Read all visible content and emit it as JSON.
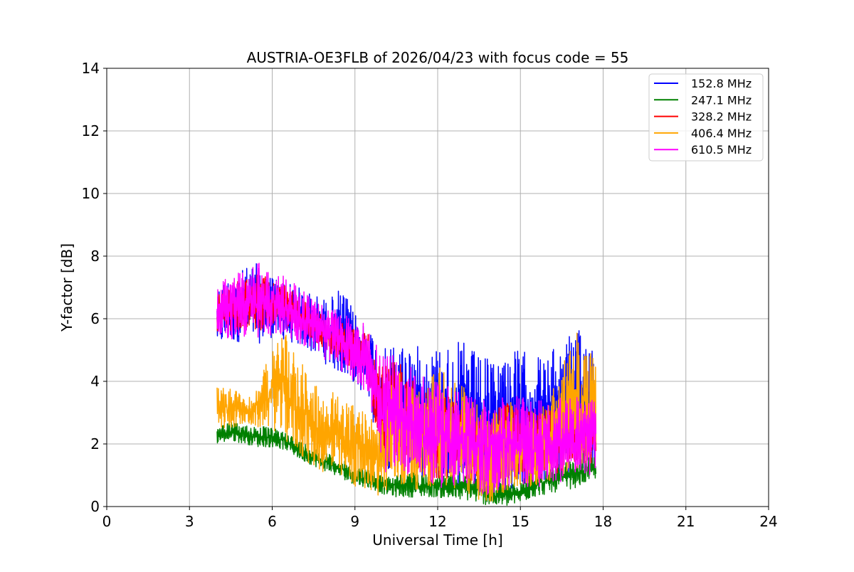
{
  "chart_data": {
    "type": "line",
    "title": "AUSTRIA-OE3FLB of 2026/04/23 with focus code = 55",
    "xlabel": "Universal Time [h]",
    "ylabel": "Y-factor [dB]",
    "xlim": [
      0,
      24
    ],
    "ylim": [
      0,
      14
    ],
    "xticks": [
      0,
      3,
      6,
      9,
      12,
      15,
      18,
      21,
      24
    ],
    "yticks": [
      0,
      2,
      4,
      6,
      8,
      10,
      12,
      14
    ],
    "grid": true,
    "legend_position": "top-right",
    "x": [
      4,
      4.5,
      5,
      5.5,
      6,
      6.5,
      7,
      7.5,
      8,
      8.5,
      9,
      9.5,
      10,
      10.5,
      11,
      11.5,
      12,
      12.5,
      13,
      13.5,
      14,
      14.5,
      15,
      15.5,
      16,
      16.5,
      17,
      17.5,
      17.75
    ],
    "series": [
      {
        "name": "152.8 MHz",
        "color": "#0000ff",
        "low": [
          5.1,
          5.2,
          5.3,
          5.2,
          5.4,
          5.3,
          5.1,
          4.9,
          4.5,
          4.2,
          3.9,
          3.4,
          1.2,
          1.2,
          1.0,
          0.9,
          0.8,
          0.7,
          0.6,
          0.5,
          0.4,
          0.5,
          0.6,
          0.7,
          0.8,
          0.9,
          1.0,
          1.0,
          1.2
        ],
        "high": [
          7.0,
          7.4,
          7.6,
          7.8,
          7.4,
          7.2,
          7.0,
          6.8,
          6.6,
          7.0,
          6.2,
          5.8,
          5.0,
          5.3,
          5.3,
          5.0,
          5.2,
          5.2,
          5.3,
          4.8,
          4.7,
          5.1,
          5.0,
          4.9,
          4.8,
          5.4,
          5.6,
          5.7,
          5.0
        ]
      },
      {
        "name": "247.1 MHz",
        "color": "#008000",
        "low": [
          2.0,
          2.1,
          2.0,
          1.9,
          1.9,
          1.8,
          1.5,
          1.3,
          1.1,
          0.9,
          0.7,
          0.6,
          0.4,
          0.3,
          0.3,
          0.3,
          0.3,
          0.2,
          0.2,
          0.1,
          0.0,
          0.0,
          0.1,
          0.3,
          0.4,
          0.5,
          0.6,
          0.8,
          0.9
        ],
        "high": [
          2.6,
          2.7,
          2.6,
          2.6,
          2.5,
          2.4,
          2.1,
          1.9,
          1.7,
          1.5,
          1.3,
          1.2,
          1.0,
          1.0,
          1.1,
          1.1,
          1.0,
          1.0,
          1.1,
          1.0,
          0.8,
          0.7,
          0.8,
          1.2,
          1.2,
          1.4,
          1.5,
          1.6,
          1.6
        ]
      },
      {
        "name": "328.2 MHz",
        "color": "#ff0000",
        "low": [
          5.5,
          5.6,
          5.7,
          5.6,
          5.8,
          5.7,
          5.5,
          5.3,
          4.9,
          4.6,
          4.3,
          3.8,
          1.3,
          1.5,
          1.3,
          1.1,
          0.9,
          0.9,
          0.8,
          0.7,
          0.6,
          0.8,
          0.9,
          0.9,
          1.0,
          1.1,
          1.3,
          1.3,
          1.5
        ],
        "high": [
          6.7,
          7.2,
          7.3,
          7.5,
          7.2,
          7.1,
          6.7,
          6.3,
          6.1,
          5.9,
          5.7,
          5.5,
          4.5,
          4.7,
          4.2,
          3.9,
          3.7,
          3.5,
          3.3,
          3.1,
          3.1,
          3.3,
          3.2,
          3.1,
          3.2,
          3.3,
          3.2,
          3.1,
          3.1
        ]
      },
      {
        "name": "406.4 MHz",
        "color": "#ffa500",
        "low": [
          2.4,
          2.5,
          2.6,
          2.5,
          2.5,
          2.0,
          1.6,
          1.2,
          1.0,
          0.8,
          0.6,
          0.5,
          0.3,
          0.5,
          0.5,
          0.6,
          0.6,
          0.5,
          0.4,
          0.2,
          0.1,
          0.3,
          0.5,
          0.6,
          0.8,
          1.0,
          1.2,
          1.4,
          1.5
        ],
        "high": [
          3.8,
          3.9,
          3.5,
          3.8,
          5.2,
          5.6,
          4.8,
          4.0,
          3.8,
          3.5,
          3.2,
          3.0,
          2.8,
          4.5,
          4.0,
          3.5,
          4.6,
          4.0,
          3.8,
          3.2,
          3.0,
          3.4,
          3.2,
          3.0,
          3.4,
          4.4,
          5.7,
          5.0,
          4.8
        ]
      },
      {
        "name": "610.5 MHz",
        "color": "#ff00ff",
        "low": [
          5.2,
          5.3,
          5.4,
          5.3,
          5.5,
          5.4,
          5.2,
          5.0,
          4.6,
          4.3,
          4.0,
          3.5,
          1.0,
          1.2,
          1.0,
          0.8,
          0.6,
          0.6,
          0.5,
          0.4,
          0.3,
          0.5,
          0.6,
          0.6,
          0.7,
          0.8,
          1.0,
          1.0,
          1.2
        ],
        "high": [
          7.0,
          7.5,
          7.6,
          7.8,
          7.5,
          7.4,
          7.0,
          6.6,
          6.4,
          6.2,
          6.0,
          5.8,
          4.8,
          5.0,
          4.5,
          4.2,
          4.0,
          3.8,
          3.6,
          3.4,
          3.4,
          3.6,
          3.5,
          3.4,
          3.5,
          3.6,
          3.5,
          3.4,
          3.4
        ]
      }
    ]
  }
}
